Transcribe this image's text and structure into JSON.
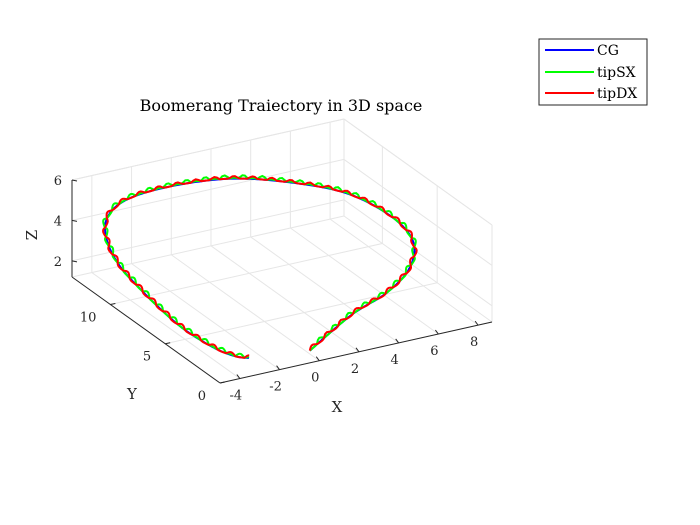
{
  "chart_data": {
    "type": "line3d",
    "title": "Boomerang Traiectory in 3D space",
    "xlabel": "X",
    "ylabel": "Y",
    "zlabel": "Z",
    "x_ticks": [
      "-4",
      "-2",
      "0",
      "2",
      "4",
      "6",
      "8"
    ],
    "y_ticks": [
      "0",
      "5",
      "10"
    ],
    "z_ticks": [
      "2",
      "4",
      "6"
    ],
    "xlim": [
      -5,
      8.7
    ],
    "ylim": [
      0,
      13.5
    ],
    "zlim": [
      1.2,
      6.0
    ],
    "grid": true,
    "legend_position": "top-right",
    "series": [
      {
        "name": "CG",
        "color": "#0000ff"
      },
      {
        "name": "tipSX",
        "color": "#00ff00"
      },
      {
        "name": "tipDX",
        "color": "#ff0000"
      }
    ],
    "cg_path": [
      {
        "x": -0.2,
        "y": 0.5,
        "z": 1.55
      },
      {
        "x": 2.0,
        "y": 0.7,
        "z": 2.75
      },
      {
        "x": 4.0,
        "y": 1.1,
        "z": 3.25
      },
      {
        "x": 5.7,
        "y": 2.1,
        "z": 3.7
      },
      {
        "x": 6.5,
        "y": 3.2,
        "z": 4.4
      },
      {
        "x": 6.7,
        "y": 5.5,
        "z": 4.7
      },
      {
        "x": 5.8,
        "y": 8.0,
        "z": 5.1
      },
      {
        "x": 4.0,
        "y": 10.2,
        "z": 5.2
      },
      {
        "x": 2.0,
        "y": 12.0,
        "z": 5.1
      },
      {
        "x": -0.5,
        "y": 13.0,
        "z": 4.85
      },
      {
        "x": -2.5,
        "y": 13.2,
        "z": 4.55
      },
      {
        "x": -3.8,
        "y": 12.5,
        "z": 4.2
      },
      {
        "x": -4.5,
        "y": 11.2,
        "z": 3.75
      },
      {
        "x": -4.8,
        "y": 9.5,
        "z": 3.25
      },
      {
        "x": -4.8,
        "y": 7.7,
        "z": 2.85
      },
      {
        "x": -4.6,
        "y": 6.3,
        "z": 2.4
      },
      {
        "x": -4.3,
        "y": 5.0,
        "z": 1.95
      },
      {
        "x": -4.0,
        "y": 3.8,
        "z": 1.7
      },
      {
        "x": -3.5,
        "y": 2.8,
        "z": 1.4
      },
      {
        "x": -3.0,
        "y": 2.1,
        "z": 1.25
      },
      {
        "x": -2.6,
        "y": 1.7,
        "z": 1.25
      }
    ]
  },
  "legend": {
    "cg_label": "CG",
    "tipsx_label": "tipSX",
    "tipdx_label": "tipDX"
  }
}
